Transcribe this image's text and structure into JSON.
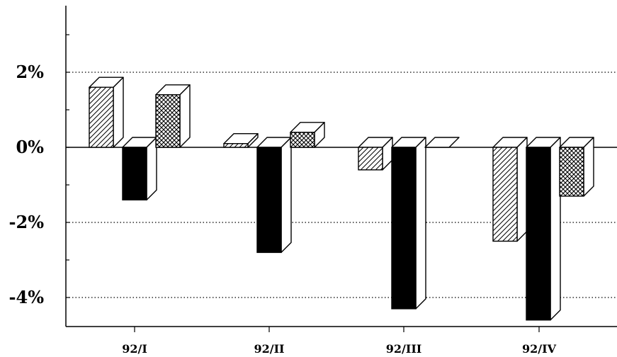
{
  "chart_data": {
    "type": "bar",
    "title": "",
    "xlabel": "",
    "ylabel": "",
    "categories": [
      "92/I",
      "92/II",
      "92/III",
      "92/IV"
    ],
    "y_tick_labels": [
      "2%",
      "0%",
      "-2%",
      "-4%"
    ],
    "y_ticks": [
      2,
      0,
      -2,
      -4
    ],
    "ylim": [
      -4.6,
      3.9
    ],
    "grid": "horizontal dotted at labelled ticks",
    "legend": "none",
    "three_d": true,
    "series": [
      {
        "pattern": "diagonal-hatch",
        "fill": "#ffffff",
        "values": [
          1.6,
          0.1,
          -0.6,
          -2.5
        ]
      },
      {
        "pattern": "solid",
        "fill": "#000000",
        "values": [
          -1.4,
          -2.8,
          -4.3,
          -4.6
        ]
      },
      {
        "pattern": "cross-hatch",
        "fill": "#ffffff",
        "values": [
          1.4,
          0.4,
          0.0,
          -1.3
        ]
      }
    ]
  }
}
